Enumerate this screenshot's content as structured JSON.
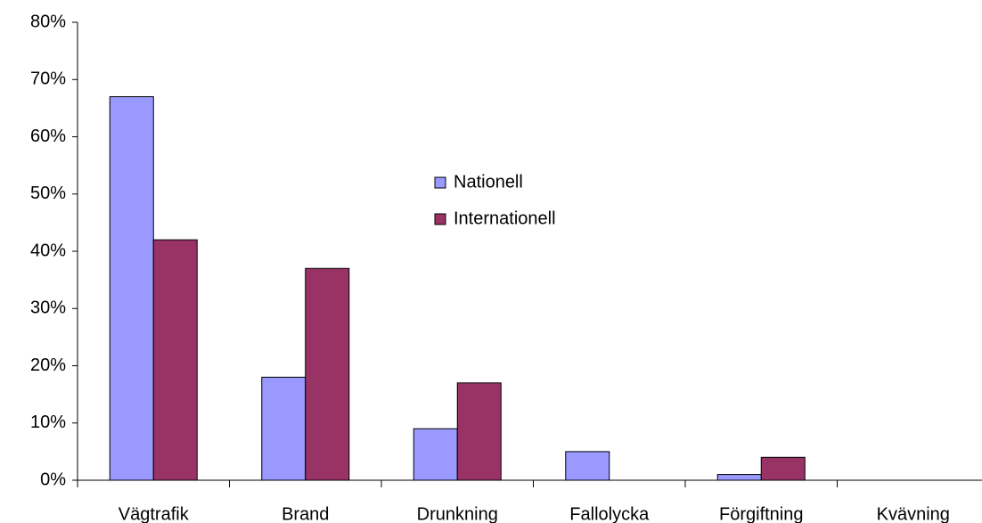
{
  "chart_data": {
    "type": "bar",
    "categories": [
      "Vägtrafik",
      "Brand",
      "Drunkning",
      "Fallolycka",
      "Förgiftning",
      "Kvävning"
    ],
    "series": [
      {
        "name": "Nationell",
        "color": "#9999ff",
        "values": [
          67,
          18,
          9,
          5,
          1,
          0
        ]
      },
      {
        "name": "Internationell",
        "color": "#993366",
        "values": [
          42,
          37,
          17,
          0,
          4,
          0
        ]
      }
    ],
    "ylim": [
      0,
      80
    ],
    "yticks": [
      {
        "value": 0,
        "label": "0%"
      },
      {
        "value": 10,
        "label": "10%"
      },
      {
        "value": 20,
        "label": "20%"
      },
      {
        "value": 30,
        "label": "30%"
      },
      {
        "value": 40,
        "label": "40%"
      },
      {
        "value": 50,
        "label": "50%"
      },
      {
        "value": 60,
        "label": "60%"
      },
      {
        "value": 70,
        "label": "70%"
      },
      {
        "value": 80,
        "label": "80%"
      }
    ],
    "grid": false,
    "legend": "center"
  }
}
